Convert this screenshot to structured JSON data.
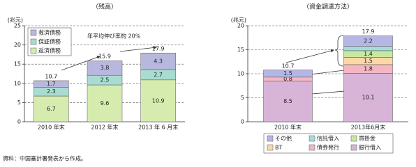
{
  "chart_data": [
    {
      "type": "stacked_bar",
      "title": "（残高）",
      "y_label": "(兆元)",
      "categories": [
        "2010 年末",
        "2012 年末",
        "2013 年 6 月末"
      ],
      "series": [
        {
          "name": "返済債務",
          "color": "#d6ecae",
          "values": [
            6.7,
            9.6,
            10.9
          ]
        },
        {
          "name": "保証債務",
          "color": "#a8dcd0",
          "values": [
            2.3,
            2.5,
            2.7
          ]
        },
        {
          "name": "救済債務",
          "color": "#b8b8de",
          "values": [
            1.7,
            3.8,
            4.3
          ]
        }
      ],
      "totals": [
        10.7,
        15.9,
        17.9
      ],
      "annotation": "年平均伸び率約 20%",
      "ylim": [
        0,
        25
      ],
      "yticks": [
        0,
        5,
        10,
        15,
        20,
        25
      ],
      "grid": true,
      "legend": "upper left"
    },
    {
      "type": "stacked_bar",
      "title": "（資金調達方法）",
      "y_label": "(兆元)",
      "categories": [
        "2010 年末",
        "2013年6月末"
      ],
      "series": [
        {
          "name": "銀行借入",
          "color": "#d8b4d8",
          "values": [
            8.5,
            10.1
          ]
        },
        {
          "name": "債券発行",
          "color": "#f4b6c4",
          "values": [
            0.8,
            1.8
          ]
        },
        {
          "name": "BT",
          "color": "#fcd8a6",
          "values": [
            null,
            1.5
          ]
        },
        {
          "name": "買掛金",
          "color": "#c8e8a0",
          "values": [
            null,
            1.4
          ]
        },
        {
          "name": "信託借入",
          "color": "#a6dcd6",
          "values": [
            null,
            0.9
          ],
          "value_labels": [
            null,
            null
          ]
        },
        {
          "name": "その他",
          "color": "#b6b6e2",
          "values": [
            1.5,
            2.2
          ]
        }
      ],
      "totals": [
        10.7,
        17.9
      ],
      "ylim": [
        0,
        20
      ],
      "yticks": [
        0,
        5,
        10,
        15,
        20
      ],
      "grid": true,
      "legend": "bottom"
    }
  ],
  "note": "資料：中国審計署発表から作成。"
}
